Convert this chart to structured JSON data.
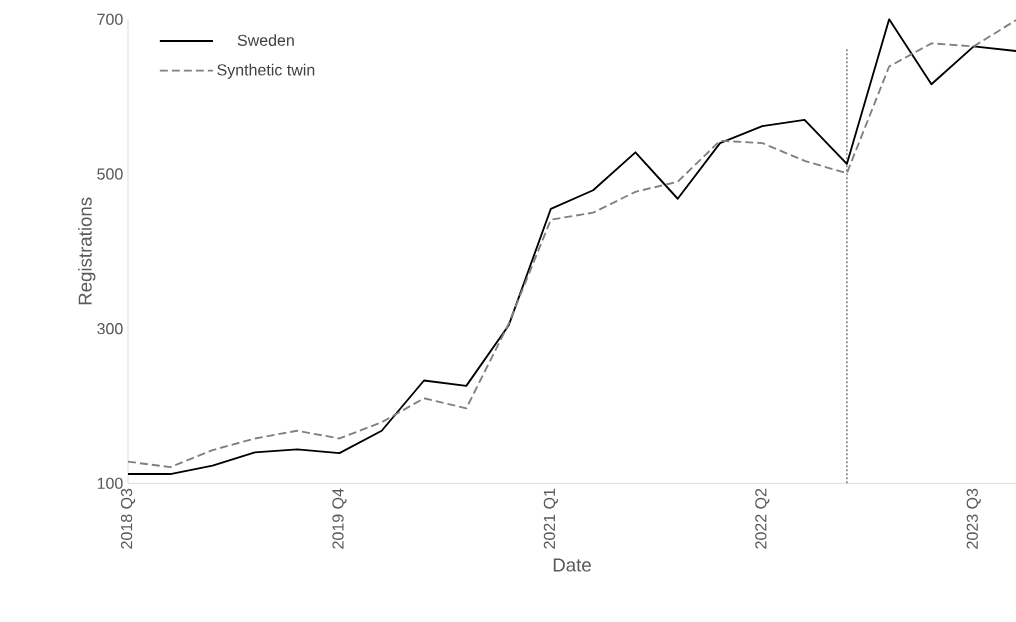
{
  "chart_data": {
    "type": "line",
    "xlabel": "Date",
    "ylabel": "Registrations",
    "x": [
      "2018-07",
      "2018-10",
      "2019-01",
      "2019-04",
      "2019-07",
      "2019-10",
      "2020-01",
      "2020-04",
      "2020-07",
      "2020-10",
      "2021-01",
      "2021-04",
      "2021-07",
      "2021-10",
      "2022-01",
      "2022-04",
      "2022-07",
      "2022-10",
      "2023-01",
      "2023-04",
      "2023-07",
      "2023-10"
    ],
    "series": [
      {
        "name": "Sweden",
        "color": "#000000",
        "line_style": "solid",
        "values": [
          112,
          112,
          123,
          140,
          144,
          139,
          168,
          233,
          226,
          304,
          455,
          479,
          528,
          468,
          540,
          562,
          570,
          513,
          700,
          616,
          665,
          659
        ]
      },
      {
        "name": "Synthetic twin",
        "color": "#808080",
        "line_style": "dashed",
        "values": [
          128,
          121,
          143,
          158,
          168,
          158,
          179,
          210,
          197,
          306,
          441,
          450,
          477,
          490,
          543,
          540,
          517,
          501,
          639,
          669,
          665,
          699
        ]
      }
    ],
    "xlim": [
      "2018-07",
      "2023-10"
    ],
    "xticks": [
      {
        "value": "2018-07",
        "label": "2018 Q3"
      },
      {
        "value": "2019-10",
        "label": "2019 Q4"
      },
      {
        "value": "2021-01",
        "label": "2021 Q1"
      },
      {
        "value": "2022-04",
        "label": "2022 Q2"
      },
      {
        "value": "2023-07",
        "label": "2023 Q3"
      }
    ],
    "ylim": [
      100,
      700
    ],
    "yticks": [
      100,
      300,
      500,
      700
    ],
    "ref_lines": [
      {
        "axis": "x",
        "value": "2022-10",
        "color": "#7f7f7f",
        "line_style": "dotted"
      }
    ],
    "legend": "top left"
  }
}
